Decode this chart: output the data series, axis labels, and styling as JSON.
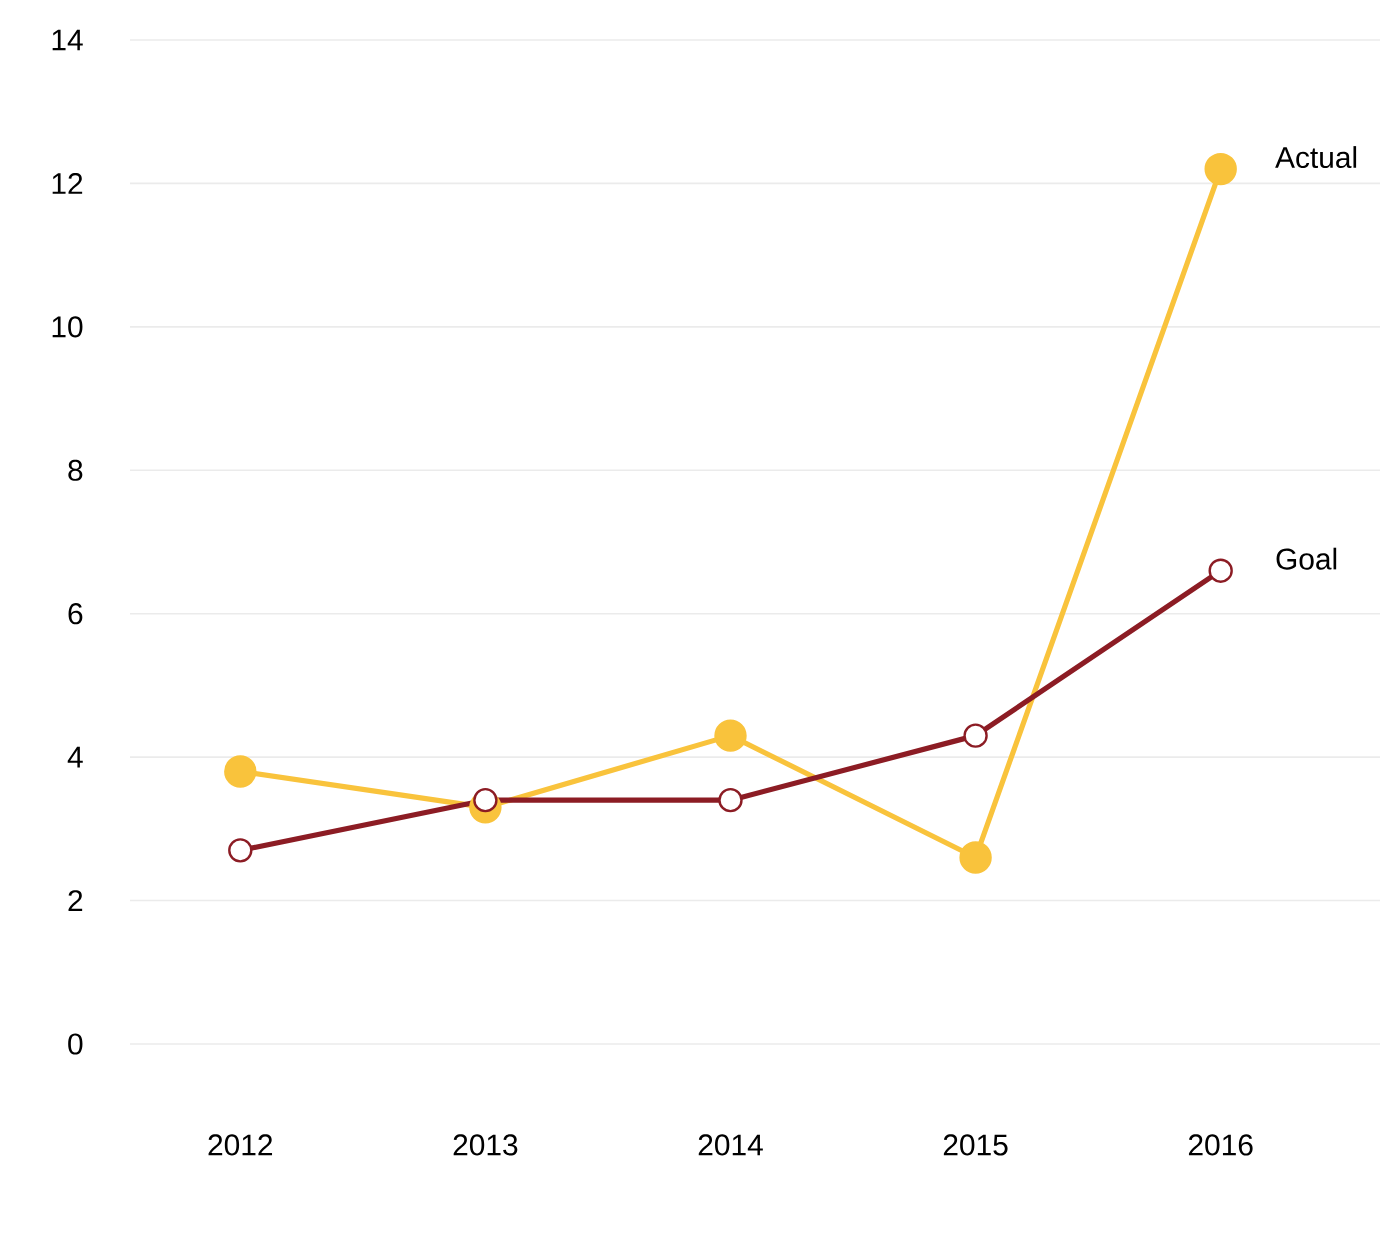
{
  "chart_data": {
    "type": "line",
    "categories": [
      "2012",
      "2013",
      "2014",
      "2015",
      "2016"
    ],
    "series": [
      {
        "name": "Actual",
        "color": "#f9c33c",
        "values": [
          3.8,
          3.3,
          4.3,
          2.6,
          12.2
        ],
        "marker": "circle"
      },
      {
        "name": "Goal",
        "color": "#8c1c24",
        "values": [
          2.7,
          3.4,
          3.4,
          4.3,
          6.6
        ],
        "marker": "circle"
      }
    ],
    "ylim": [
      0,
      14
    ],
    "yticks": [
      0,
      2,
      4,
      6,
      8,
      10,
      12,
      14
    ],
    "grid": "y",
    "legend": false
  }
}
